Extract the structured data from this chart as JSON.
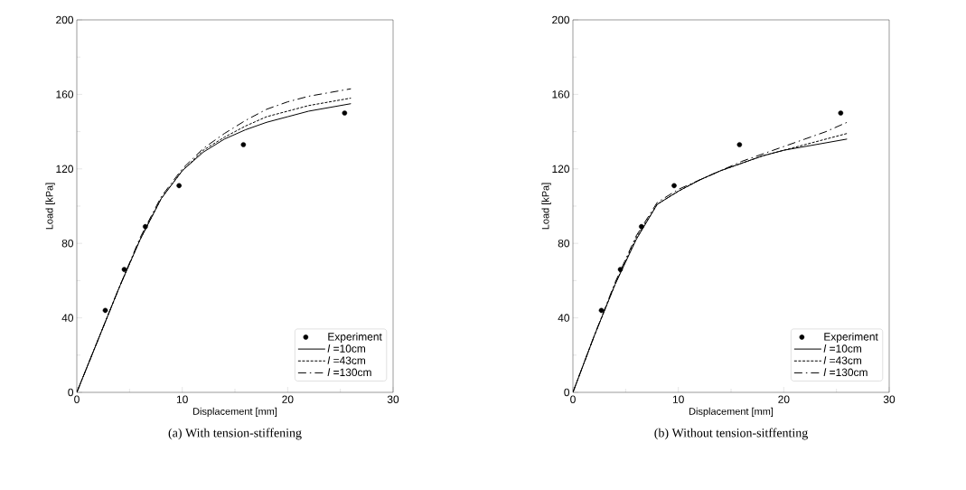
{
  "chart_data": [
    {
      "type": "line",
      "title": "(a) With tension-stiffening",
      "xlabel": "Displacement [mm]",
      "ylabel": "Load [kPa]",
      "xlim": [
        0,
        30
      ],
      "ylim": [
        0,
        200
      ],
      "xticks": [
        0,
        10,
        20,
        30
      ],
      "yticks": [
        0,
        40,
        80,
        120,
        160,
        200
      ],
      "grid": false,
      "legend": "bottom right",
      "series": [
        {
          "name": "Experiment",
          "type": "scatter",
          "color": "#000000",
          "x": [
            2.7,
            4.5,
            6.5,
            9.7,
            15.8,
            25.4
          ],
          "values": [
            44,
            66,
            89,
            111,
            133,
            150
          ]
        },
        {
          "name": "*l* =10cm",
          "line_style": "solid",
          "color": "#000000",
          "x": [
            0,
            2,
            4,
            6,
            8,
            10,
            12,
            14,
            16,
            18,
            20,
            22,
            24,
            26
          ],
          "values": [
            0,
            28,
            56,
            82,
            104,
            119,
            129,
            136,
            141,
            145,
            148,
            151,
            153,
            155
          ]
        },
        {
          "name": "*l* =43cm",
          "line_style": "dashed",
          "color": "#000000",
          "x": [
            0,
            2,
            4,
            6,
            8,
            10,
            12,
            14,
            16,
            18,
            20,
            22,
            24,
            26
          ],
          "values": [
            0,
            28,
            56,
            82,
            104,
            119,
            130,
            137,
            143,
            148,
            151,
            154,
            156,
            158
          ]
        },
        {
          "name": "*l* =130cm",
          "line_style": "dashdot",
          "color": "#000000",
          "x": [
            0,
            2,
            4,
            6,
            8,
            10,
            12,
            14,
            16,
            18,
            20,
            22,
            24,
            26
          ],
          "values": [
            0,
            28,
            56,
            83,
            105,
            120,
            131,
            139,
            146,
            152,
            156,
            159,
            161,
            163
          ]
        }
      ]
    },
    {
      "type": "line",
      "title": "(b) Without tension-sitffenting",
      "xlabel": "Displacement [mm]",
      "ylabel": "Load [kPa]",
      "xlim": [
        0,
        30
      ],
      "ylim": [
        0,
        200
      ],
      "xticks": [
        0,
        10,
        20,
        30
      ],
      "yticks": [
        0,
        40,
        80,
        120,
        160,
        200
      ],
      "grid": false,
      "legend": "bottom right",
      "series": [
        {
          "name": "Experiment",
          "type": "scatter",
          "color": "#000000",
          "x": [
            2.7,
            4.5,
            6.5,
            9.6,
            15.8,
            25.4
          ],
          "values": [
            44,
            66,
            89,
            111,
            133,
            150
          ]
        },
        {
          "name": "*l* =10cm",
          "line_style": "solid",
          "color": "#000000",
          "x": [
            0,
            2,
            4,
            6,
            8,
            10,
            12,
            14,
            16,
            18,
            20,
            22,
            24,
            26
          ],
          "values": [
            0,
            30,
            58,
            82,
            101,
            108,
            114,
            119,
            123,
            127,
            130,
            132,
            134,
            136
          ]
        },
        {
          "name": "*l* =43cm",
          "line_style": "dashed",
          "color": "#000000",
          "x": [
            0,
            2,
            4,
            6,
            8,
            10,
            12,
            14,
            16,
            18,
            20,
            22,
            24,
            26
          ],
          "values": [
            0,
            30,
            58,
            83,
            101,
            108,
            114,
            119,
            123,
            127,
            130,
            133,
            136,
            139
          ]
        },
        {
          "name": "*l* =130cm",
          "line_style": "dashdot",
          "color": "#000000",
          "x": [
            0,
            2,
            4,
            6,
            8,
            10,
            12,
            14,
            16,
            18,
            20,
            22,
            24,
            26
          ],
          "values": [
            0,
            30,
            59,
            84,
            102,
            109,
            114,
            119,
            124,
            128,
            132,
            136,
            140,
            145
          ]
        }
      ]
    }
  ]
}
